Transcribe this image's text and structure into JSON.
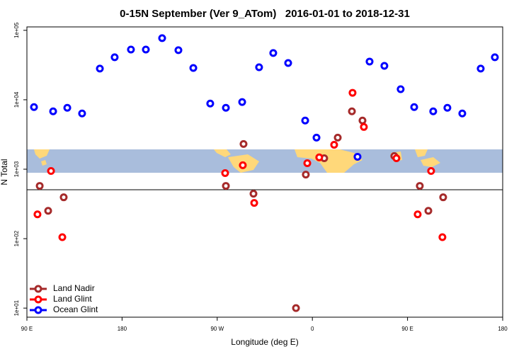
{
  "chart_data": {
    "type": "scatter",
    "title": "0-15N September (Ver 9_ATom)   2016-01-01 to 2018-12-31",
    "x_label": "Longitude (deg E)",
    "y_label": "N Total",
    "xlim": [
      90,
      540
    ],
    "xticks": [
      {
        "value": 90,
        "label": "90 E"
      },
      180,
      {
        "value": 270,
        "label": "90 W"
      },
      {
        "value": 360,
        "label": "0"
      },
      {
        "value": 450,
        "label": "90 E"
      },
      {
        "value": 540,
        "label": "180"
      }
    ],
    "ylim": [
      7.4,
      112000
    ],
    "log_y": true,
    "yticks": [
      {
        "value": 10,
        "label": "1e+01"
      },
      {
        "value": 100,
        "label": "1e+02"
      },
      {
        "value": 1000,
        "label": "1e+03"
      },
      {
        "value": 10000,
        "label": "1e+04"
      },
      {
        "value": 100000,
        "label": "1e+05"
      }
    ],
    "legend": "bottom-left",
    "series": [
      {
        "name": "Land Nadir",
        "color": "#a52a2a",
        "x": [
          102.1,
          110.1,
          124.8,
          294.9,
          278.2,
          304.3,
          353.8,
          384.0,
          371.2,
          397.4,
          407.4,
          437.5,
          461.6,
          469.7,
          483.7,
          344.5
        ],
        "values": [
          575,
          252,
          394,
          2310,
          575,
          444,
          837,
          2850,
          1440,
          6820,
          5020,
          1550,
          575,
          252,
          394,
          10
        ]
      },
      {
        "name": "Land Glint",
        "color": "#ff0000",
        "x": [
          100.0,
          112.8,
          123.5,
          277.5,
          294.2,
          305.0,
          355.2,
          366.5,
          380.6,
          398.0,
          408.7,
          439.5,
          459.6,
          472.3,
          483.0
        ],
        "values": [
          224,
          942,
          105,
          879,
          1140,
          327,
          1220,
          1480,
          2250,
          12600,
          4060,
          1440,
          224,
          942,
          105
        ]
      },
      {
        "name": "Ocean Glint",
        "color": "#0000ff",
        "x": [
          96.7,
          114.8,
          128.2,
          142.2,
          159.0,
          173.0,
          188.4,
          202.5,
          217.9,
          233.3,
          247.4,
          263.4,
          278.2,
          293.6,
          309.6,
          323.0,
          337.1,
          353.2,
          363.9,
          402.7,
          414.1,
          428.1,
          443.5,
          456.3,
          474.3,
          487.7,
          501.8,
          519.2,
          532.6
        ],
        "values": [
          7850,
          6820,
          7670,
          6350,
          28100,
          40900,
          52900,
          52900,
          77100,
          51800,
          28700,
          8830,
          7670,
          9270,
          29400,
          47100,
          33800,
          5020,
          2850,
          1510,
          35500,
          30800,
          14200,
          7850,
          6820,
          7670,
          6350,
          28100,
          40900
        ]
      }
    ]
  }
}
